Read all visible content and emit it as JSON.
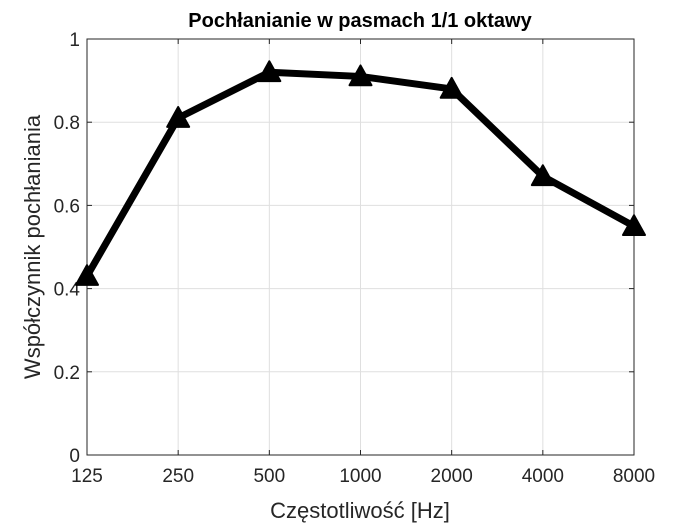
{
  "chart_data": {
    "type": "line",
    "title": "Pochłanianie w pasmach 1/1 oktawy",
    "xlabel": "Częstotliwość [Hz]",
    "ylabel": "Współczynnik pochłaniania",
    "categories": [
      "125",
      "250",
      "500",
      "1000",
      "2000",
      "4000",
      "8000"
    ],
    "values": [
      0.43,
      0.81,
      0.92,
      0.91,
      0.88,
      0.67,
      0.55
    ],
    "ylim": [
      0,
      1
    ],
    "yticks": [
      "0",
      "0.2",
      "0.4",
      "0.6",
      "0.8",
      "1"
    ],
    "grid": true,
    "marker": "triangle",
    "line_color": "#000000"
  }
}
